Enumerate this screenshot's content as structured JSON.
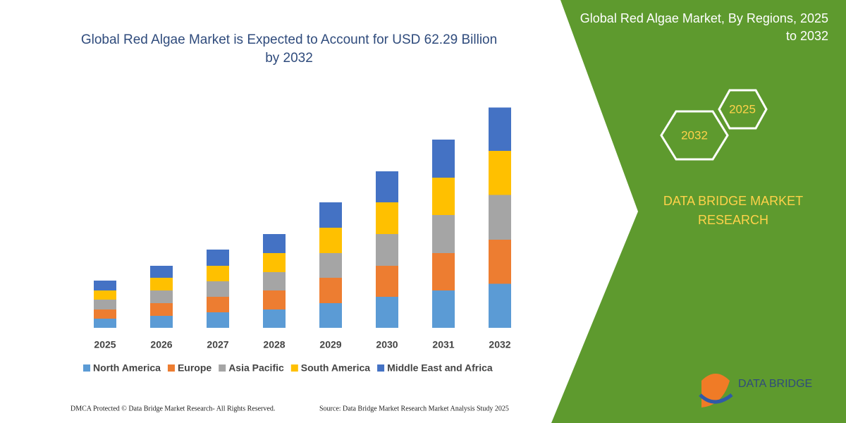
{
  "chart_data": {
    "type": "stacked_bar",
    "title": "Global Red Algae Market is Expected to Account for USD 62.29 Billion by 2032",
    "categories": [
      "2025",
      "2026",
      "2027",
      "2028",
      "2029",
      "2030",
      "2031",
      "2032"
    ],
    "ylim": [
      0,
      70
    ],
    "series": [
      {
        "name": "North America",
        "color": "#5b9bd5",
        "values": [
          2.6,
          3.4,
          4.4,
          5.2,
          7.0,
          8.8,
          10.6,
          12.5
        ]
      },
      {
        "name": "Europe",
        "color": "#ed7d31",
        "values": [
          2.6,
          3.6,
          4.4,
          5.4,
          7.2,
          8.8,
          10.6,
          12.5
        ]
      },
      {
        "name": "Asia Pacific",
        "color": "#a5a5a5",
        "values": [
          2.8,
          3.6,
          4.4,
          5.2,
          7.0,
          9.0,
          10.8,
          12.7
        ]
      },
      {
        "name": "South America",
        "color": "#ffc000",
        "values": [
          2.6,
          3.6,
          4.4,
          5.4,
          7.2,
          9.0,
          10.6,
          12.5
        ]
      },
      {
        "name": "Middle East and Africa",
        "color": "#4472c4",
        "values": [
          2.8,
          3.4,
          4.6,
          5.4,
          7.2,
          8.8,
          10.8,
          12.3
        ]
      }
    ]
  },
  "panel": {
    "title": "Global Red Algae Market, By Regions, 2025 to 2032",
    "hex_labels": [
      "2025",
      "2032"
    ],
    "brand": "DATA BRIDGE MARKET RESEARCH",
    "logo": "DATA BRIDGE"
  },
  "footer": {
    "left": "DMCA Protected © Data Bridge Market Research-  All Rights Reserved.",
    "right": "Source: Data Bridge Market Research  Market Analysis Study 2025"
  }
}
